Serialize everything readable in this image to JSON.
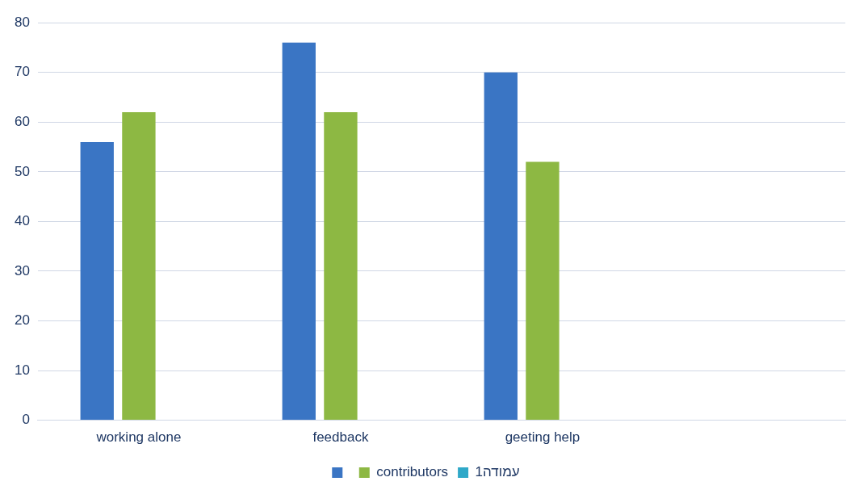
{
  "chart_data": {
    "type": "bar",
    "categories": [
      "working alone",
      "feedback",
      "geeting help",
      null
    ],
    "series": [
      {
        "color": "#3a75c4",
        "values": [
          56,
          76,
          70,
          null
        ]
      },
      {
        "name": "contributors",
        "color": "#8db843",
        "values": [
          62,
          62,
          52,
          null
        ]
      },
      {
        "name": "עמודה1",
        "color": "#2fa8c8",
        "values": [
          null,
          null,
          null,
          null
        ]
      }
    ],
    "ylim": [
      0,
      80
    ],
    "yticks": [
      0,
      10,
      20,
      30,
      40,
      50,
      60,
      70,
      80
    ],
    "grid": "y",
    "legend": "bottom"
  }
}
